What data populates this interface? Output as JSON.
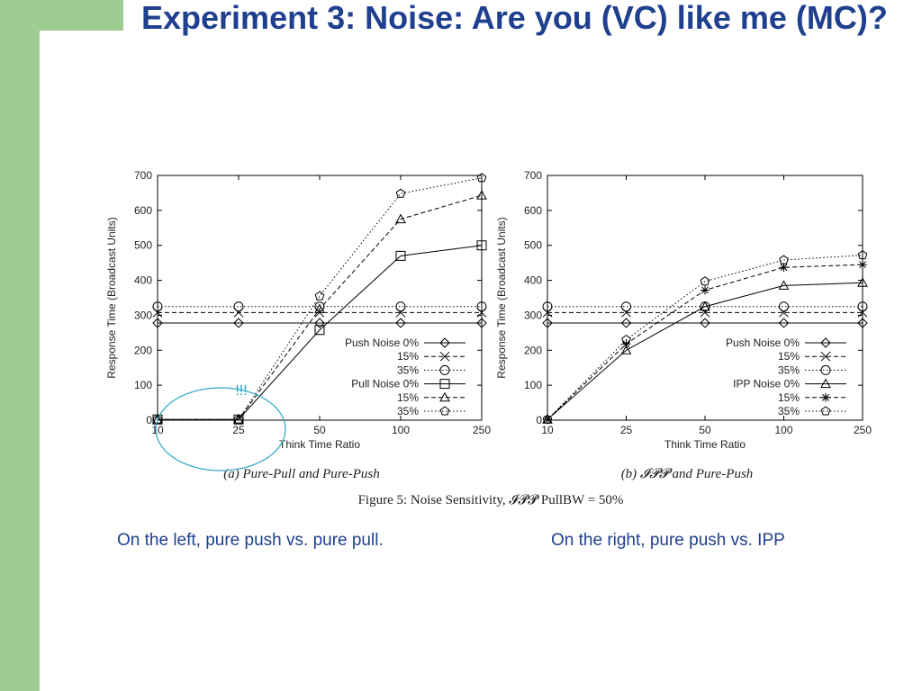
{
  "slide": {
    "title": "Experiment 3: Noise: Are you (VC) like me (MC)?",
    "caption_left": "On the left, pure push vs. pure pull.",
    "caption_right": "On the right, pure push vs. IPP",
    "figure_caption": "Figure 5: Noise Sensitivity, 𝓘𝓟𝓟 PullBW = 50%",
    "accent_color": "#9dcd93",
    "title_color": "#1f3f8f"
  },
  "chart_data": [
    {
      "type": "line",
      "caption": "(a) Pure-Pull and Pure-Push",
      "xlabel": "Think Time Ratio",
      "ylabel": "Response Time (Broadcast Units)",
      "x": [
        "10",
        "25",
        "50",
        "100",
        "250"
      ],
      "ylim": [
        0,
        700
      ],
      "yticks": [
        0,
        100,
        200,
        300,
        400,
        500,
        600,
        700
      ],
      "legend_position": "bottom-right",
      "annotation": {
        "text": "!!!",
        "color": "#2aa6c4"
      },
      "series": [
        {
          "name": "Push Noise 0%",
          "marker": "diamond",
          "dash": "solid",
          "values": [
            278,
            278,
            278,
            278,
            278
          ]
        },
        {
          "name": "15%",
          "marker": "x",
          "dash": "dashed",
          "values": [
            308,
            308,
            308,
            308,
            308
          ]
        },
        {
          "name": "35%",
          "marker": "circle",
          "dash": "dotted",
          "values": [
            325,
            325,
            325,
            325,
            325
          ]
        },
        {
          "name": "Pull Noise 0%",
          "marker": "square",
          "dash": "solid",
          "values": [
            2,
            2,
            258,
            470,
            500
          ]
        },
        {
          "name": "15%",
          "marker": "triangle",
          "dash": "dashed",
          "values": [
            2,
            2,
            318,
            575,
            643
          ]
        },
        {
          "name": "35%",
          "marker": "pentagon",
          "dash": "dotted",
          "values": [
            2,
            2,
            355,
            648,
            693
          ]
        }
      ]
    },
    {
      "type": "line",
      "caption": "(b) 𝓘𝓟𝓟 and Pure-Push",
      "xlabel": "Think Time Ratio",
      "ylabel": "Response Time (Broadcast Units)",
      "x": [
        "10",
        "25",
        "50",
        "100",
        "250"
      ],
      "ylim": [
        0,
        700
      ],
      "yticks": [
        0,
        100,
        200,
        300,
        400,
        500,
        600,
        700
      ],
      "legend_position": "bottom-right",
      "series": [
        {
          "name": "Push Noise 0%",
          "marker": "diamond",
          "dash": "solid",
          "values": [
            278,
            278,
            278,
            278,
            278
          ]
        },
        {
          "name": "15%",
          "marker": "x",
          "dash": "dashed",
          "values": [
            308,
            308,
            308,
            308,
            308
          ]
        },
        {
          "name": "35%",
          "marker": "circle",
          "dash": "dotted",
          "values": [
            325,
            325,
            325,
            325,
            325
          ]
        },
        {
          "name": "IPP Noise 0%",
          "marker": "triangle",
          "dash": "solid",
          "values": [
            2,
            200,
            325,
            385,
            393
          ]
        },
        {
          "name": "15%",
          "marker": "star",
          "dash": "dashed",
          "values": [
            2,
            218,
            372,
            437,
            445
          ]
        },
        {
          "name": "35%",
          "marker": "pentagon",
          "dash": "dotted",
          "values": [
            2,
            230,
            397,
            458,
            472
          ]
        }
      ]
    }
  ]
}
